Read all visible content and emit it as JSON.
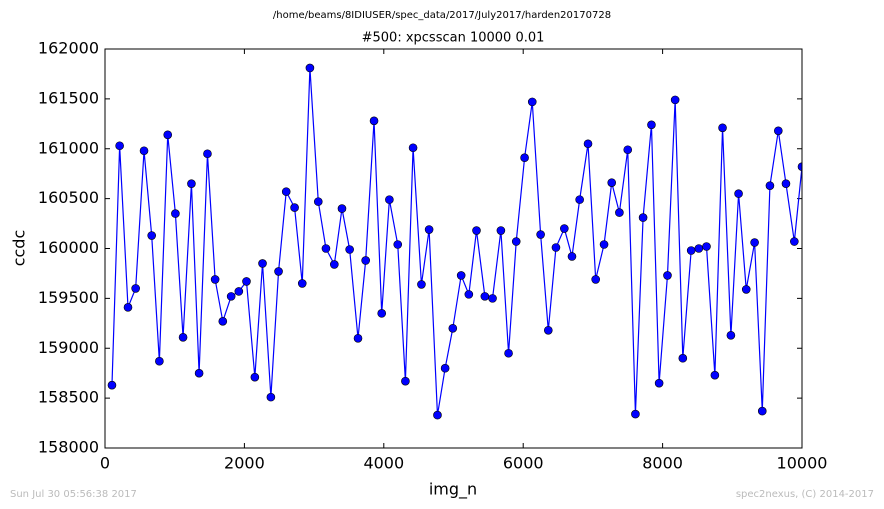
{
  "chart_data": {
    "type": "line",
    "suptitle": "/home/beams/8IDIUSER/spec_data/2017/July2017/harden20170728",
    "title": "#500: xpcsscan 10000 0.01",
    "x_label": "img_n",
    "y_label": "ccdc",
    "footer_left": "Sun Jul 30 05:56:38 2017",
    "footer_right": "spec2nexus, (C) 2014-2017",
    "x": [
      100,
      210,
      330,
      440,
      560,
      670,
      780,
      900,
      1010,
      1120,
      1240,
      1350,
      1470,
      1580,
      1690,
      1810,
      1920,
      2030,
      2150,
      2260,
      2380,
      2490,
      2600,
      2720,
      2830,
      2940,
      3060,
      3170,
      3290,
      3400,
      3510,
      3630,
      3740,
      3860,
      3970,
      4080,
      4200,
      4310,
      4420,
      4540,
      4650,
      4770,
      4880,
      4990,
      5110,
      5220,
      5330,
      5450,
      5560,
      5680,
      5790,
      5900,
      6020,
      6130,
      6250,
      6360,
      6470,
      6590,
      6700,
      6810,
      6930,
      7040,
      7160,
      7270,
      7380,
      7500,
      7610,
      7720,
      7840,
      7950,
      8070,
      8180,
      8290,
      8410,
      8520,
      8630,
      8750,
      8860,
      8980,
      9090,
      9200,
      9320,
      9430,
      9540,
      9660,
      9770,
      9890,
      10000
    ],
    "series": [
      {
        "name": "ccdc",
        "color": "#0000ff",
        "values": [
          158630,
          161030,
          159410,
          159600,
          160980,
          160130,
          158870,
          161140,
          160350,
          159110,
          160650,
          158750,
          160950,
          159690,
          159270,
          159520,
          159570,
          159670,
          158710,
          159850,
          158510,
          159770,
          160570,
          160410,
          159650,
          161810,
          160470,
          160000,
          159840,
          160400,
          159990,
          159100,
          159880,
          161280,
          159350,
          160490,
          160040,
          158670,
          161010,
          159640,
          160190,
          158330,
          158800,
          159200,
          159730,
          159540,
          160180,
          159520,
          159500,
          160180,
          158950,
          160070,
          160910,
          161470,
          160140,
          159180,
          160010,
          160200,
          159920,
          160490,
          161050,
          159690,
          160040,
          160660,
          160360,
          160990,
          158340,
          160310,
          161240,
          158650,
          159730,
          161490,
          158900,
          159980,
          160000,
          160020,
          158730,
          161210,
          159130,
          160550,
          159590,
          160060,
          158370,
          160630,
          161180,
          160650,
          160070,
          160820
        ]
      }
    ],
    "xlim": [
      0,
      10000
    ],
    "xticks": [
      0,
      2000,
      4000,
      6000,
      8000,
      10000
    ],
    "ylim": [
      158000,
      162000
    ],
    "yticks": [
      158000,
      158500,
      159000,
      159500,
      160000,
      160500,
      161000,
      161500,
      162000
    ]
  }
}
